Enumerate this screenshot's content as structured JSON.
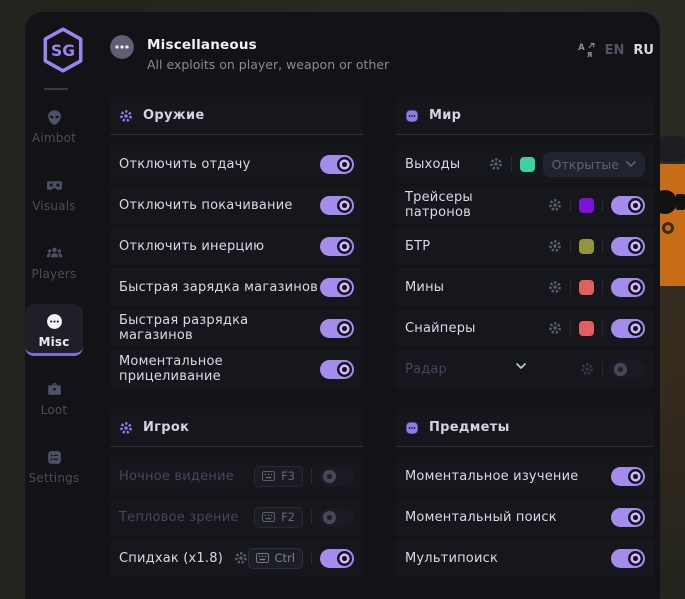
{
  "header": {
    "title": "Miscellaneous",
    "subtitle": "All exploits on player, weapon or other",
    "lang": {
      "en": "EN",
      "ru": "RU",
      "selected": "RU"
    }
  },
  "sidebar": {
    "items": [
      {
        "id": "aimbot",
        "label": "Aimbot",
        "icon": "alien-icon",
        "active": false
      },
      {
        "id": "visuals",
        "label": "Visuals",
        "icon": "vr-goggles-icon",
        "active": false
      },
      {
        "id": "players",
        "label": "Players",
        "icon": "players-icon",
        "active": false
      },
      {
        "id": "misc",
        "label": "Misc",
        "icon": "ellipsis-circle-icon",
        "active": true
      },
      {
        "id": "loot",
        "label": "Loot",
        "icon": "briefcase-icon",
        "active": false
      },
      {
        "id": "settings",
        "label": "Settings",
        "icon": "settings-list-icon",
        "active": false
      }
    ]
  },
  "colors": {
    "accent": "#a48ced",
    "exit_green": "#38d39f",
    "tracer_purple": "#7d12d9",
    "btr_olive": "#92953a",
    "danger_red": "#e25f5f"
  },
  "sections": [
    {
      "id": "weapon",
      "title": "Оружие",
      "icon": "gear-icon",
      "rows": [
        {
          "label": "Отключить отдачу",
          "controls": [
            {
              "t": "toggle",
              "on": true
            }
          ]
        },
        {
          "label": "Отключить покачивание",
          "controls": [
            {
              "t": "toggle",
              "on": true
            }
          ]
        },
        {
          "label": "Отключить инерцию",
          "controls": [
            {
              "t": "toggle",
              "on": true
            }
          ]
        },
        {
          "label": "Быстрая зарядка магазинов",
          "controls": [
            {
              "t": "toggle",
              "on": true
            }
          ]
        },
        {
          "label": "Быстрая разрядка магазинов",
          "controls": [
            {
              "t": "toggle",
              "on": true
            }
          ]
        },
        {
          "label": "Моментальное прицеливание",
          "controls": [
            {
              "t": "toggle",
              "on": true
            }
          ]
        }
      ]
    },
    {
      "id": "world",
      "title": "Мир",
      "icon": "chat-dots-icon",
      "rows": [
        {
          "label": "Выходы",
          "controls": [
            {
              "t": "gear"
            },
            {
              "t": "div"
            },
            {
              "t": "swatch",
              "c": "#38d39f"
            },
            {
              "t": "dropdown",
              "label": "Открытые"
            }
          ]
        },
        {
          "label": "Трейсеры патронов",
          "controls": [
            {
              "t": "gear"
            },
            {
              "t": "div"
            },
            {
              "t": "swatch",
              "c": "#7d12d9"
            },
            {
              "t": "div"
            },
            {
              "t": "toggle",
              "on": true
            }
          ]
        },
        {
          "label": "БТР",
          "controls": [
            {
              "t": "gear"
            },
            {
              "t": "div"
            },
            {
              "t": "swatch",
              "c": "#92953a"
            },
            {
              "t": "div"
            },
            {
              "t": "toggle",
              "on": true
            }
          ]
        },
        {
          "label": "Мины",
          "controls": [
            {
              "t": "gear"
            },
            {
              "t": "div"
            },
            {
              "t": "swatch",
              "c": "#e25f5f"
            },
            {
              "t": "div"
            },
            {
              "t": "toggle",
              "on": true
            }
          ]
        },
        {
          "label": "Снайперы",
          "controls": [
            {
              "t": "gear"
            },
            {
              "t": "div"
            },
            {
              "t": "swatch",
              "c": "#e25f5f"
            },
            {
              "t": "div"
            },
            {
              "t": "toggle",
              "on": true
            }
          ]
        },
        {
          "label": "Радар",
          "disabled": true,
          "chevron": true,
          "controls": [
            {
              "t": "gear"
            },
            {
              "t": "div"
            },
            {
              "t": "toggle",
              "on": false
            }
          ]
        }
      ]
    },
    {
      "id": "player",
      "title": "Игрок",
      "icon": "gear-icon",
      "rows": [
        {
          "label": "Ночное видение",
          "disabled": true,
          "controls": [
            {
              "t": "key",
              "label": "F3"
            },
            {
              "t": "div"
            },
            {
              "t": "toggle",
              "on": false
            }
          ]
        },
        {
          "label": "Тепловое зрение",
          "disabled": true,
          "controls": [
            {
              "t": "key",
              "label": "F2"
            },
            {
              "t": "div"
            },
            {
              "t": "toggle",
              "on": false
            }
          ]
        },
        {
          "label": "Спидхак (x1.8)",
          "controls": [
            {
              "t": "gear"
            },
            {
              "t": "key",
              "label": "Ctrl"
            },
            {
              "t": "div"
            },
            {
              "t": "toggle",
              "on": true
            }
          ]
        }
      ]
    },
    {
      "id": "items",
      "title": "Предметы",
      "icon": "chat-dots-icon",
      "rows": [
        {
          "label": "Моментальное изучение",
          "controls": [
            {
              "t": "toggle",
              "on": true
            }
          ]
        },
        {
          "label": "Моментальный поиск",
          "controls": [
            {
              "t": "toggle",
              "on": true
            }
          ]
        },
        {
          "label": "Мультипоиск",
          "controls": [
            {
              "t": "toggle",
              "on": true
            }
          ]
        }
      ]
    }
  ]
}
